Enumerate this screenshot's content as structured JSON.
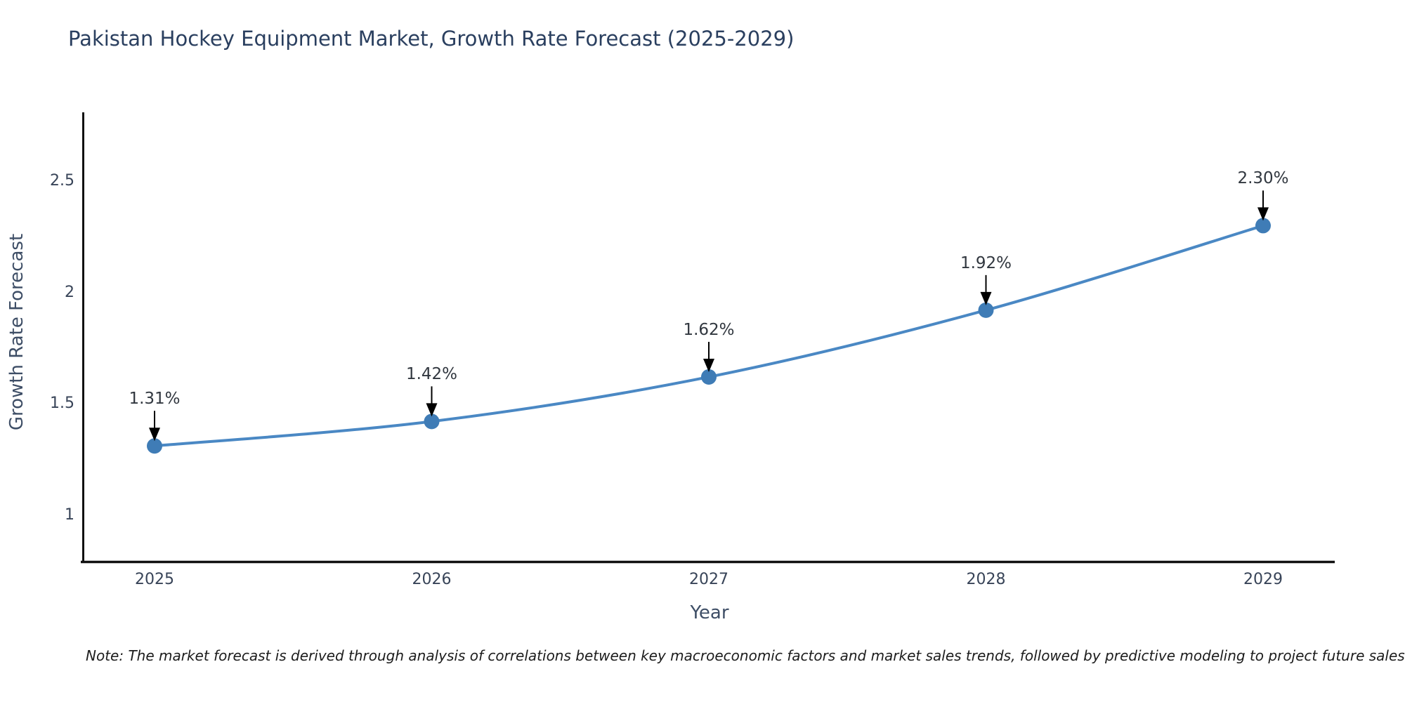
{
  "chart_data": {
    "type": "line",
    "title": "Pakistan Hockey Equipment Market, Growth Rate Forecast (2025-2029)",
    "xlabel": "Year",
    "ylabel": "Growth Rate Forecast",
    "categories": [
      "2025",
      "2026",
      "2027",
      "2028",
      "2029"
    ],
    "series": [
      {
        "name": "Growth Rate Forecast",
        "values": [
          1.31,
          1.42,
          1.62,
          1.92,
          2.3
        ]
      }
    ],
    "point_labels": [
      "1.31%",
      "1.42%",
      "1.62%",
      "1.92%",
      "2.30%"
    ],
    "yticks": [
      "2.5",
      "2",
      "1.5",
      "1"
    ],
    "ytick_values": [
      2.5,
      2,
      1.5,
      1
    ],
    "ylim": [
      0.78,
      2.81
    ],
    "grid": false,
    "legend_position": "none",
    "line_color": "#4a88c4",
    "marker_color": "#3f7cb6",
    "arrow_color": "#000000",
    "spine_color": "#111111"
  },
  "footnote": "Note: The market forecast is derived through analysis of correlations between key macroeconomic factors and market sales trends, followed by predictive modeling to project future sales"
}
